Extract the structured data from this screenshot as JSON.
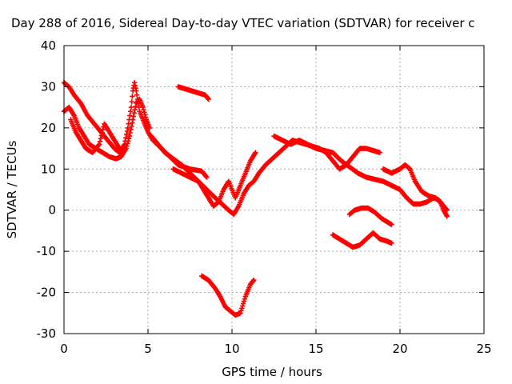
{
  "chart_data": {
    "type": "scatter",
    "title": "Day 288 of 2016, Sidereal Day-to-day VTEC variation (SDTVAR) for receiver c",
    "xlabel": "GPS time / hours",
    "ylabel": "SDTVAR / TECUs",
    "xlim": [
      0,
      25
    ],
    "ylim": [
      -30,
      40
    ],
    "xticks": [
      0,
      5,
      10,
      15,
      20,
      25
    ],
    "yticks": [
      -30,
      -20,
      -10,
      0,
      10,
      20,
      30,
      40
    ],
    "grid": true,
    "marker": "plus",
    "color": "#ff0000",
    "series": [
      {
        "values": [
          [
            0.0,
            31
          ],
          [
            0.3,
            30
          ],
          [
            0.6,
            28
          ],
          [
            1.0,
            26
          ],
          [
            1.4,
            23
          ],
          [
            1.8,
            21
          ],
          [
            2.2,
            19
          ],
          [
            2.6,
            17
          ],
          [
            3.0,
            15
          ],
          [
            3.3,
            14
          ],
          [
            3.6,
            16
          ],
          [
            3.8,
            20
          ],
          [
            4.0,
            25
          ],
          [
            4.1,
            29
          ],
          [
            4.2,
            31
          ],
          [
            4.3,
            29
          ],
          [
            4.5,
            24
          ],
          [
            4.8,
            21
          ],
          [
            5.0,
            19
          ],
          [
            5.3,
            17
          ],
          [
            5.8,
            15
          ],
          [
            6.3,
            13
          ],
          [
            6.8,
            11
          ],
          [
            7.5,
            10
          ],
          [
            8.2,
            9.5
          ],
          [
            8.5,
            8
          ]
        ]
      },
      {
        "values": [
          [
            0.0,
            24
          ],
          [
            0.3,
            25
          ],
          [
            0.6,
            23
          ],
          [
            0.9,
            20
          ],
          [
            1.2,
            18
          ],
          [
            1.5,
            16
          ],
          [
            1.9,
            15
          ],
          [
            2.3,
            14
          ],
          [
            2.7,
            13
          ],
          [
            3.1,
            12.5
          ],
          [
            3.4,
            13
          ],
          [
            3.7,
            15
          ],
          [
            3.9,
            18
          ],
          [
            4.1,
            22
          ],
          [
            4.3,
            26
          ],
          [
            4.5,
            27
          ],
          [
            4.7,
            25
          ],
          [
            4.9,
            22
          ],
          [
            5.1,
            20
          ]
        ]
      },
      {
        "values": [
          [
            0.4,
            22
          ],
          [
            0.7,
            19
          ],
          [
            1.0,
            17
          ],
          [
            1.3,
            15
          ],
          [
            1.7,
            14
          ],
          [
            2.1,
            16
          ],
          [
            2.4,
            21
          ],
          [
            2.7,
            19
          ],
          [
            3.0,
            17
          ],
          [
            3.3,
            15
          ]
        ]
      },
      {
        "values": [
          [
            5.2,
            18
          ],
          [
            5.6,
            16
          ],
          [
            6.0,
            14
          ],
          [
            6.5,
            12.5
          ],
          [
            7.0,
            11
          ],
          [
            7.5,
            9
          ],
          [
            8.0,
            7
          ],
          [
            8.5,
            5
          ],
          [
            9.0,
            3
          ],
          [
            9.4,
            1.5
          ],
          [
            9.8,
            0
          ],
          [
            10.1,
            -1
          ],
          [
            10.4,
            1
          ],
          [
            10.7,
            4
          ],
          [
            11.0,
            6
          ],
          [
            11.3,
            7
          ],
          [
            11.6,
            9
          ],
          [
            12.0,
            11
          ],
          [
            12.4,
            12.5
          ],
          [
            12.8,
            14
          ],
          [
            13.2,
            15.5
          ],
          [
            13.6,
            17
          ],
          [
            14.0,
            16.5
          ],
          [
            14.4,
            16
          ],
          [
            14.8,
            15.5
          ],
          [
            15.2,
            15
          ],
          [
            15.6,
            14
          ],
          [
            16.0,
            12
          ],
          [
            16.4,
            10
          ],
          [
            16.8,
            11
          ],
          [
            17.2,
            13
          ],
          [
            17.6,
            15
          ],
          [
            18.0,
            15
          ],
          [
            18.4,
            14.5
          ],
          [
            18.8,
            14
          ]
        ]
      },
      {
        "values": [
          [
            6.5,
            10
          ],
          [
            7.0,
            9
          ],
          [
            7.5,
            8
          ],
          [
            8.0,
            7
          ],
          [
            8.3,
            5
          ],
          [
            8.6,
            3
          ],
          [
            8.9,
            1
          ],
          [
            9.2,
            2
          ],
          [
            9.5,
            5
          ],
          [
            9.8,
            7
          ],
          [
            10.2,
            3
          ],
          [
            10.5,
            6
          ],
          [
            10.8,
            9
          ],
          [
            11.1,
            12
          ],
          [
            11.4,
            14
          ]
        ]
      },
      {
        "values": [
          [
            6.8,
            30
          ],
          [
            7.2,
            29.5
          ],
          [
            7.6,
            29
          ],
          [
            8.0,
            28.5
          ],
          [
            8.4,
            28
          ],
          [
            8.6,
            27
          ]
        ]
      },
      {
        "values": [
          [
            12.5,
            18
          ],
          [
            13.0,
            17
          ],
          [
            13.5,
            16
          ],
          [
            14.0,
            17
          ],
          [
            14.5,
            16
          ],
          [
            15.0,
            15
          ],
          [
            15.5,
            14.5
          ],
          [
            16.0,
            14
          ],
          [
            16.5,
            12
          ],
          [
            17.0,
            10.5
          ],
          [
            17.5,
            9
          ],
          [
            18.0,
            8
          ],
          [
            18.5,
            7.5
          ],
          [
            19.0,
            7
          ],
          [
            19.5,
            6
          ],
          [
            20.0,
            5
          ],
          [
            20.4,
            3
          ],
          [
            20.8,
            1.5
          ],
          [
            21.2,
            1.5
          ],
          [
            21.6,
            2
          ],
          [
            22.0,
            3
          ],
          [
            22.3,
            2.5
          ],
          [
            22.6,
            1
          ],
          [
            22.8,
            0
          ]
        ]
      },
      {
        "values": [
          [
            19.0,
            10
          ],
          [
            19.5,
            9
          ],
          [
            20.0,
            10
          ],
          [
            20.3,
            11
          ],
          [
            20.6,
            10
          ],
          [
            20.9,
            7
          ],
          [
            21.3,
            4.5
          ],
          [
            21.7,
            3.5
          ],
          [
            22.1,
            3
          ],
          [
            22.4,
            2
          ],
          [
            22.6,
            0
          ],
          [
            22.8,
            -1.5
          ]
        ]
      },
      {
        "values": [
          [
            17.0,
            -1
          ],
          [
            17.3,
            0
          ],
          [
            17.7,
            0.5
          ],
          [
            18.1,
            0.5
          ],
          [
            18.5,
            -0.5
          ],
          [
            18.9,
            -2
          ],
          [
            19.3,
            -3
          ],
          [
            19.5,
            -3.5
          ]
        ]
      },
      {
        "values": [
          [
            16.0,
            -6
          ],
          [
            16.4,
            -7
          ],
          [
            16.8,
            -8
          ],
          [
            17.2,
            -9
          ],
          [
            17.6,
            -8.5
          ],
          [
            18.0,
            -7
          ],
          [
            18.4,
            -5.5
          ],
          [
            18.8,
            -7
          ],
          [
            19.2,
            -7.5
          ],
          [
            19.5,
            -8
          ]
        ]
      },
      {
        "values": [
          [
            8.2,
            -16
          ],
          [
            8.6,
            -17
          ],
          [
            9.0,
            -19
          ],
          [
            9.3,
            -21
          ],
          [
            9.6,
            -23.5
          ],
          [
            9.9,
            -24.5
          ],
          [
            10.2,
            -25.5
          ],
          [
            10.5,
            -25
          ],
          [
            10.8,
            -21
          ],
          [
            11.1,
            -18
          ],
          [
            11.3,
            -17
          ]
        ]
      }
    ]
  }
}
